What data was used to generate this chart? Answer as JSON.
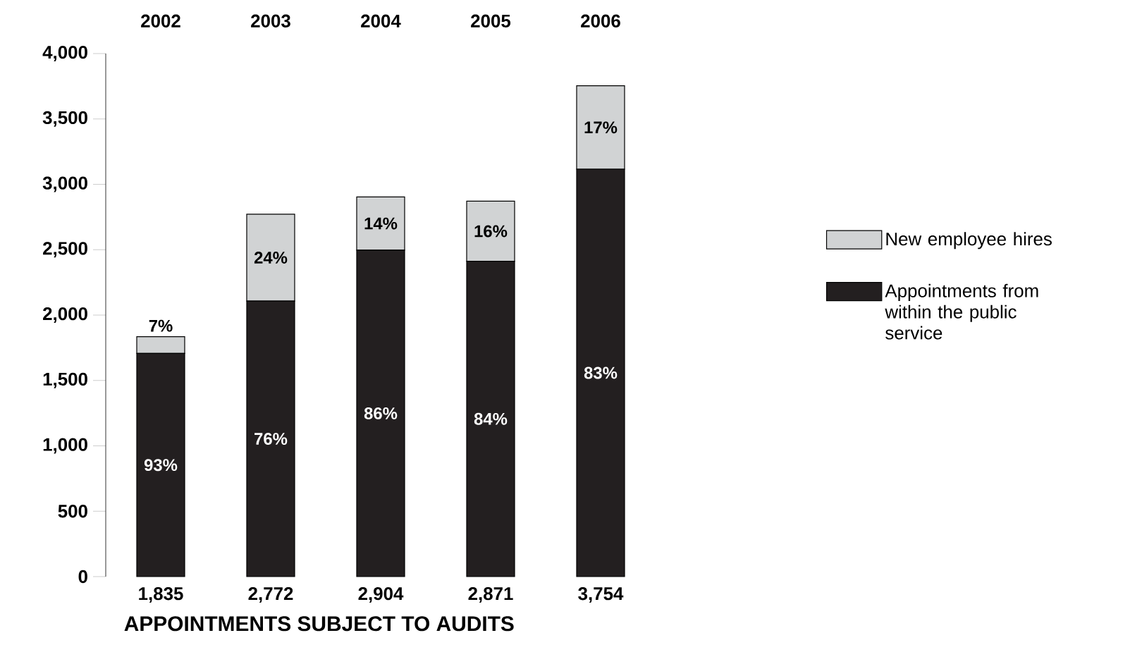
{
  "chart_data": {
    "type": "bar",
    "stacked": true,
    "xlabel": "APPOINTMENTS SUBJECT TO AUDITS",
    "categories": [
      "2002",
      "2003",
      "2004",
      "2005",
      "2006"
    ],
    "series": [
      {
        "name": "Appointments from within the public service",
        "color": "#231f20",
        "values": [
          1707,
          2107,
          2497,
          2412,
          3116
        ]
      },
      {
        "name": "New employee hires",
        "color": "#d1d3d4",
        "values": [
          128,
          665,
          407,
          459,
          638
        ]
      }
    ],
    "annotations": [
      "93%",
      "76%",
      "86%",
      "84%",
      "83%",
      "7%",
      "24%",
      "14%",
      "16%",
      "17%"
    ],
    "totals": [
      "1,835",
      "2,772",
      "2,904",
      "2,871",
      "3,754"
    ],
    "ylim": [
      0,
      4000
    ],
    "yticks": [
      {
        "value": 0,
        "label": "0"
      },
      {
        "value": 500,
        "label": "500"
      },
      {
        "value": 1000,
        "label": "1,000"
      },
      {
        "value": 1500,
        "label": "1,500"
      },
      {
        "value": 2000,
        "label": "2,000"
      },
      {
        "value": 2500,
        "label": "2,500"
      },
      {
        "value": 3000,
        "label": "3,000"
      },
      {
        "value": 3500,
        "label": "3,500"
      },
      {
        "value": 4000,
        "label": "4,000"
      }
    ],
    "legend": "right",
    "grid": false
  }
}
